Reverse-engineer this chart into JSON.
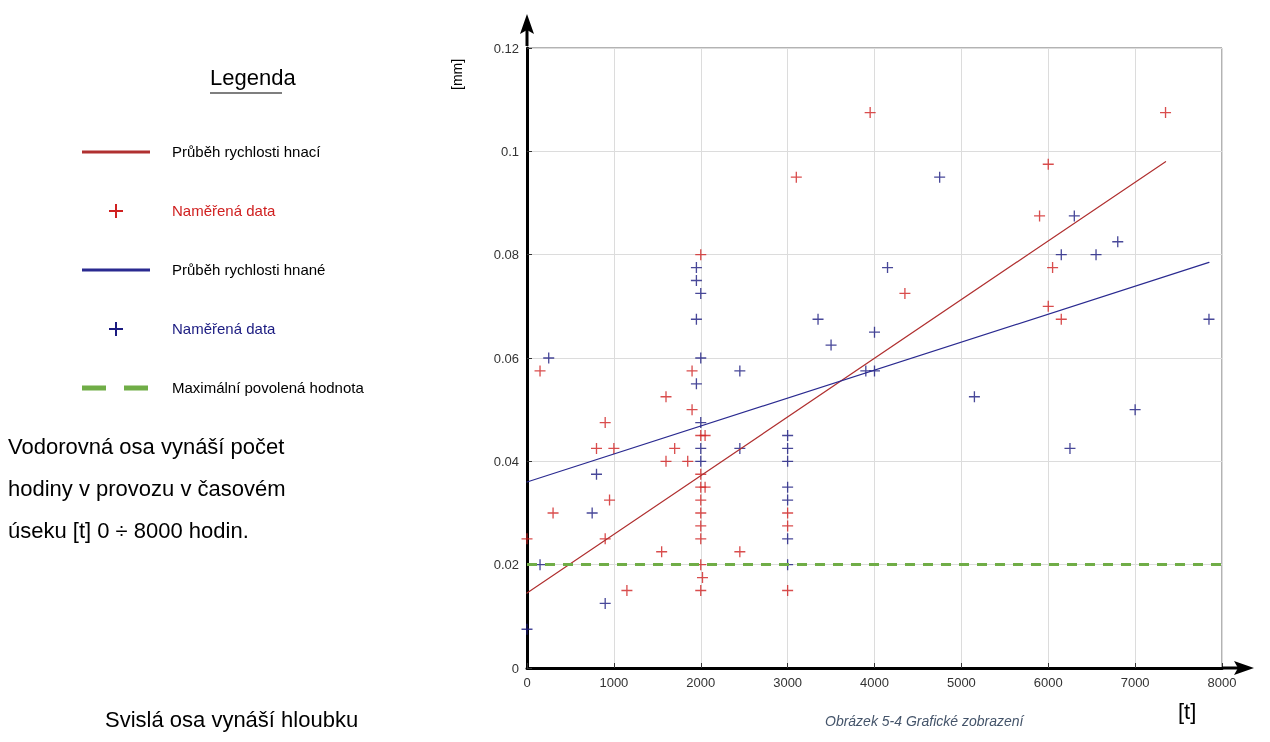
{
  "chart_data": {
    "type": "scatter",
    "xlabel": "[t]",
    "ylabel": "[mm]",
    "legend_title": "Legenda",
    "legend": "left",
    "xlim": [
      0,
      8000
    ],
    "xticks": [
      0,
      1000,
      2000,
      3000,
      4000,
      5000,
      6000,
      7000,
      8000
    ],
    "ylim": [
      0,
      0.12
    ],
    "yticks": [
      0,
      0.02,
      0.04,
      0.06,
      0.08,
      0.1,
      0.12
    ],
    "grid": true,
    "series": [
      {
        "type": "line",
        "name": "Průběh rychlosti hnací",
        "color": "#b03030",
        "marker": "none",
        "line_style": "solid",
        "x": [
          0,
          7350
        ],
        "values": [
          0.0145,
          0.098
        ]
      },
      {
        "type": "scatter",
        "name": "Naměřená data",
        "color": "#d02020",
        "marker": "cross",
        "x": [
          0,
          150,
          300,
          800,
          900,
          900,
          950,
          1000,
          1150,
          1550,
          1600,
          1600,
          1700,
          1850,
          1900,
          1900,
          2000,
          2000,
          2050,
          2000,
          2000,
          2050,
          2000,
          2000,
          2000,
          2000,
          2000,
          2020,
          2000,
          2450,
          3000,
          3000,
          3000,
          3100,
          3950,
          4350,
          5900,
          6000,
          6000,
          6050,
          6150,
          7350
        ],
        "values": [
          0.025,
          0.0575,
          0.03,
          0.0425,
          0.0475,
          0.025,
          0.0325,
          0.0425,
          0.015,
          0.0225,
          0.0525,
          0.04,
          0.0425,
          0.04,
          0.05,
          0.0575,
          0.08,
          0.045,
          0.045,
          0.0375,
          0.035,
          0.035,
          0.0325,
          0.03,
          0.0275,
          0.025,
          0.02,
          0.0175,
          0.015,
          0.0225,
          0.03,
          0.0275,
          0.015,
          0.095,
          0.1075,
          0.0725,
          0.0875,
          0.0975,
          0.07,
          0.0775,
          0.0675,
          0.1075
        ]
      },
      {
        "type": "line",
        "name": "Průběh rychlosti hnané",
        "color": "#2a2a90",
        "marker": "none",
        "line_style": "solid",
        "x": [
          0,
          7850
        ],
        "values": [
          0.036,
          0.0785
        ]
      },
      {
        "type": "scatter",
        "name": "Naměřená data",
        "color": "#1a1a80",
        "marker": "cross",
        "x": [
          0,
          150,
          250,
          750,
          800,
          900,
          1950,
          1950,
          2000,
          1950,
          2000,
          1950,
          2000,
          2000,
          2000,
          2450,
          2450,
          3000,
          3000,
          3000,
          3000,
          3000,
          3000,
          3000,
          3350,
          3500,
          3900,
          4000,
          4000,
          4150,
          4750,
          5150,
          6150,
          6300,
          6250,
          6550,
          6800,
          7000,
          7850
        ],
        "values": [
          0.0075,
          0.02,
          0.06,
          0.03,
          0.0375,
          0.0125,
          0.0775,
          0.075,
          0.0725,
          0.0675,
          0.06,
          0.055,
          0.0475,
          0.0425,
          0.04,
          0.0575,
          0.0425,
          0.045,
          0.0425,
          0.04,
          0.035,
          0.0325,
          0.025,
          0.02,
          0.0675,
          0.0625,
          0.0575,
          0.065,
          0.0575,
          0.0775,
          0.095,
          0.0525,
          0.08,
          0.0875,
          0.0425,
          0.08,
          0.0825,
          0.05,
          0.0675
        ]
      }
    ],
    "ref_lines": [
      {
        "axis": "y",
        "value": 0.02,
        "label": "Maximální povolená hodnota",
        "color": "#70ad47",
        "line_style": "dashed"
      }
    ],
    "annotations": [
      "Vodorovná osa vynáší počet hodiny v provozu v časovém úseku [t] 0 ÷ 8000 hodin.",
      "Svislá osa vynáší hloubku",
      "Obrázek 5-4 Grafické zobrazení"
    ]
  }
}
